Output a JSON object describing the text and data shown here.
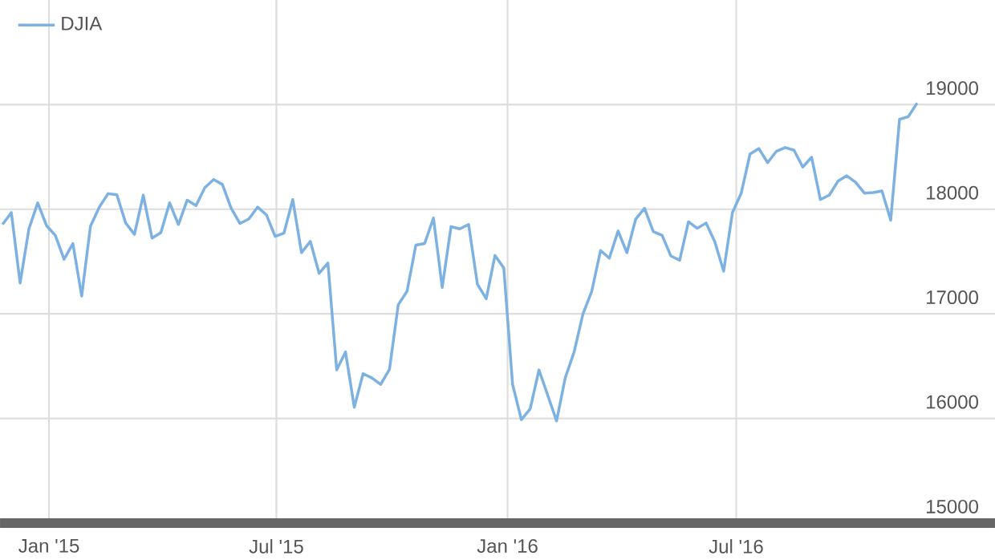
{
  "chart_data": {
    "type": "line",
    "x": [
      "2014-11-25",
      "2014-12-02",
      "2014-12-09",
      "2014-12-16",
      "2014-12-23",
      "2014-12-30",
      "2015-01-06",
      "2015-01-13",
      "2015-01-20",
      "2015-01-27",
      "2015-02-03",
      "2015-02-10",
      "2015-02-17",
      "2015-02-24",
      "2015-03-03",
      "2015-03-10",
      "2015-03-17",
      "2015-03-24",
      "2015-03-31",
      "2015-04-07",
      "2015-04-14",
      "2015-04-21",
      "2015-04-28",
      "2015-05-05",
      "2015-05-12",
      "2015-05-19",
      "2015-05-26",
      "2015-06-02",
      "2015-06-09",
      "2015-06-16",
      "2015-06-23",
      "2015-06-30",
      "2015-07-07",
      "2015-07-14",
      "2015-07-21",
      "2015-07-28",
      "2015-08-04",
      "2015-08-11",
      "2015-08-18",
      "2015-08-25",
      "2015-09-01",
      "2015-09-08",
      "2015-09-15",
      "2015-09-22",
      "2015-09-29",
      "2015-10-06",
      "2015-10-13",
      "2015-10-20",
      "2015-10-27",
      "2015-11-03",
      "2015-11-10",
      "2015-11-17",
      "2015-11-24",
      "2015-12-01",
      "2015-12-08",
      "2015-12-15",
      "2015-12-22",
      "2015-12-29",
      "2016-01-05",
      "2016-01-12",
      "2016-01-19",
      "2016-01-26",
      "2016-02-02",
      "2016-02-09",
      "2016-02-16",
      "2016-02-23",
      "2016-03-01",
      "2016-03-08",
      "2016-03-15",
      "2016-03-22",
      "2016-03-29",
      "2016-04-05",
      "2016-04-12",
      "2016-04-19",
      "2016-04-26",
      "2016-05-03",
      "2016-05-10",
      "2016-05-17",
      "2016-05-24",
      "2016-05-31",
      "2016-06-07",
      "2016-06-14",
      "2016-06-21",
      "2016-06-28",
      "2016-07-05",
      "2016-07-12",
      "2016-07-19",
      "2016-07-26",
      "2016-08-02",
      "2016-08-09",
      "2016-08-16",
      "2016-08-23",
      "2016-08-30",
      "2016-09-06",
      "2016-09-13",
      "2016-09-20",
      "2016-09-27",
      "2016-10-04",
      "2016-10-11",
      "2016-10-18",
      "2016-10-25",
      "2016-11-01",
      "2016-11-08",
      "2016-11-15",
      "2016-11-22"
    ],
    "series": [
      {
        "name": "DJIA",
        "color": "#7cb1e2",
        "values": [
          17854,
          17968,
          17294,
          17812,
          18061,
          17843,
          17750,
          17522,
          17672,
          17170,
          17838,
          18020,
          18149,
          18139,
          17869,
          17760,
          18134,
          17724,
          17776,
          18061,
          17854,
          18087,
          18035,
          18206,
          18284,
          18237,
          18009,
          17864,
          17906,
          18020,
          17947,
          17740,
          17771,
          18092,
          17584,
          17693,
          17387,
          17486,
          16464,
          16636,
          16107,
          16428,
          16387,
          16325,
          16470,
          17087,
          17216,
          17657,
          17672,
          17916,
          17252,
          17833,
          17812,
          17854,
          17283,
          17144,
          17558,
          17439,
          16325,
          15988,
          16091,
          16464,
          16221,
          15977,
          16392,
          16636,
          16998,
          17216,
          17605,
          17532,
          17792,
          17584,
          17906,
          18009,
          17786,
          17750,
          17553,
          17512,
          17880,
          17817,
          17869,
          17688,
          17408,
          17968,
          18154,
          18528,
          18580,
          18445,
          18554,
          18590,
          18564,
          18403,
          18497,
          18092,
          18134,
          18268,
          18320,
          18258,
          18154,
          18159,
          18175,
          17895,
          18859,
          18885,
          19015
        ]
      }
    ],
    "xlim": [
      "2014-11-23",
      "2017-01-23"
    ],
    "xticks": [
      {
        "value": "2015-01-01",
        "label": "Jan '15"
      },
      {
        "value": "2015-07-01",
        "label": "Jul '15"
      },
      {
        "value": "2016-01-01",
        "label": "Jan '16"
      },
      {
        "value": "2016-07-01",
        "label": "Jul '16"
      }
    ],
    "ylim": [
      15000,
      20000
    ],
    "yticks": [
      15000,
      16000,
      17000,
      18000,
      19000
    ],
    "grid": true,
    "legend": "top left",
    "marker": "none",
    "line_style": "solid"
  }
}
